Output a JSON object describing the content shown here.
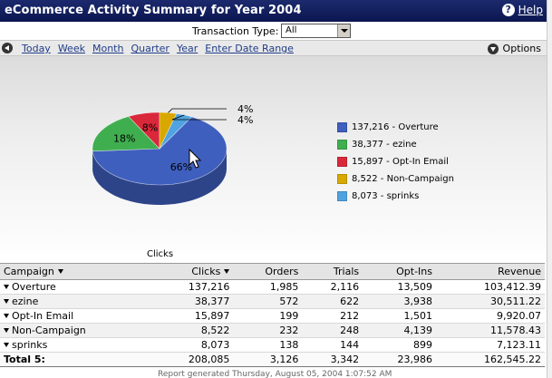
{
  "header": {
    "title": "eCommerce Activity Summary for Year 2004",
    "help_label": "Help"
  },
  "filter": {
    "label": "Transaction Type:",
    "value": "All"
  },
  "date_nav": {
    "links": [
      "Today",
      "Week",
      "Month",
      "Quarter",
      "Year",
      "Enter Date Range"
    ],
    "options_label": "Options"
  },
  "chart_data": {
    "type": "pie",
    "title": "",
    "caption": "Clicks",
    "slices": [
      {
        "label": "137,216 - Overture",
        "value": 137216,
        "percent_label": "66%",
        "color": "#3f5fbe"
      },
      {
        "label": "38,377 - ezine",
        "value": 38377,
        "percent_label": "18%",
        "color": "#3fae4f"
      },
      {
        "label": "15,897 - Opt-In Email",
        "value": 15897,
        "percent_label": "8%",
        "color": "#d9283a"
      },
      {
        "label": "8,522 - Non-Campaign",
        "value": 8522,
        "percent_label": "4%",
        "color": "#d9a800"
      },
      {
        "label": "8,073 - sprinks",
        "value": 8073,
        "percent_label": "4%",
        "color": "#4fa3e0"
      }
    ],
    "legend_position": "right"
  },
  "table": {
    "columns": [
      "Campaign",
      "Clicks",
      "Orders",
      "Trials",
      "Opt-Ins",
      "Revenue"
    ],
    "rows": [
      [
        "Overture",
        "137,216",
        "1,985",
        "2,116",
        "13,509",
        "103,412.39"
      ],
      [
        "ezine",
        "38,377",
        "572",
        "622",
        "3,938",
        "30,511.22"
      ],
      [
        "Opt-In Email",
        "15,897",
        "199",
        "212",
        "1,501",
        "9,920.07"
      ],
      [
        "Non-Campaign",
        "8,522",
        "232",
        "248",
        "4,139",
        "11,578.43"
      ],
      [
        "sprinks",
        "8,073",
        "138",
        "144",
        "899",
        "7,123.11"
      ]
    ],
    "total": [
      "Total 5:",
      "208,085",
      "3,126",
      "3,342",
      "23,986",
      "162,545.22"
    ]
  },
  "footer": {
    "text": "Report generated Thursday, August 05, 2004 1:07:52 AM"
  }
}
